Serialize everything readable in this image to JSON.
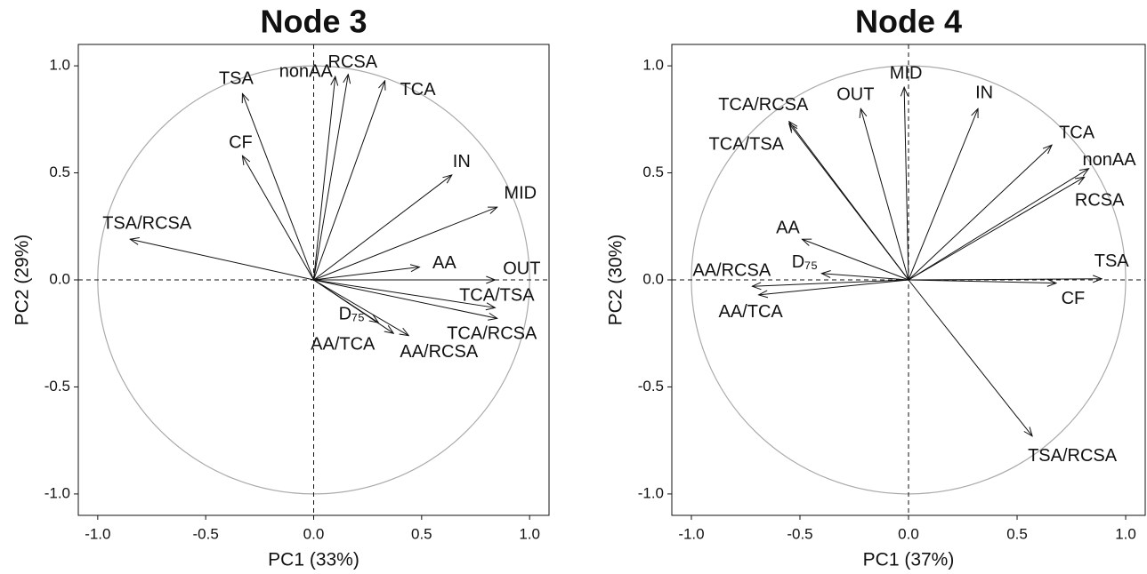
{
  "chart_data": [
    {
      "type": "arrows",
      "title": "Node 3",
      "xlabel": "PC1 (33%)",
      "ylabel": "PC2 (29%)",
      "labels": [
        "TSA",
        "CF",
        "nonAA",
        "RCSA",
        "TCA",
        "IN",
        "MID",
        "TSA/RCSA",
        "AA",
        "OUT",
        "TCA/TSA",
        "TCA/RCSA",
        "D₇₅",
        "AA/TCA",
        "AA/RCSA"
      ],
      "x": [
        -0.33,
        -0.33,
        0.1,
        0.16,
        0.33,
        0.64,
        0.85,
        -0.85,
        0.49,
        0.84,
        0.84,
        0.85,
        0.3,
        0.37,
        0.44
      ],
      "y": [
        0.87,
        0.58,
        0.95,
        0.96,
        0.93,
        0.49,
        0.34,
        0.19,
        0.06,
        0.0,
        -0.13,
        -0.18,
        -0.2,
        -0.25,
        -0.26
      ],
      "xlim": [
        -1.09,
        1.09
      ],
      "ylim": [
        -1.1,
        1.1
      ],
      "xticks": [
        {
          "value": -1,
          "label": "-1.0"
        },
        -0.5,
        {
          "value": 0,
          "label": "0.0"
        },
        0.5,
        {
          "value": 1,
          "label": "1.0"
        }
      ],
      "yticks": [
        {
          "value": -1,
          "label": "-1.0"
        },
        -0.5,
        {
          "value": 0,
          "label": "0.0"
        },
        0.5,
        {
          "value": 1,
          "label": "1.0"
        }
      ]
    },
    {
      "type": "arrows",
      "title": "Node 4",
      "xlabel": "PC1 (37%)",
      "ylabel": "PC2 (30%)",
      "labels": [
        "MID",
        "OUT",
        "IN",
        "TCA/RCSA",
        "TCA/TSA",
        "TCA",
        "nonAA",
        "RCSA",
        "AA",
        "D₇₅",
        "AA/RCSA",
        "AA/TCA",
        "TSA",
        "CF",
        "TSA/RCSA"
      ],
      "x": [
        -0.02,
        -0.22,
        0.32,
        -0.55,
        -0.55,
        0.66,
        0.83,
        0.81,
        -0.49,
        -0.4,
        -0.72,
        -0.69,
        0.89,
        0.68,
        0.57
      ],
      "y": [
        0.9,
        0.8,
        0.8,
        0.74,
        0.73,
        0.63,
        0.52,
        0.48,
        0.19,
        0.03,
        -0.03,
        -0.07,
        0.005,
        -0.015,
        -0.73
      ],
      "xlim": [
        -1.09,
        1.09
      ],
      "ylim": [
        -1.1,
        1.1
      ],
      "xticks": [
        {
          "value": -1,
          "label": "-1.0"
        },
        -0.5,
        {
          "value": 0,
          "label": "0.0"
        },
        0.5,
        {
          "value": 1,
          "label": "1.0"
        }
      ],
      "yticks": [
        {
          "value": -1,
          "label": "-1.0"
        },
        -0.5,
        {
          "value": 0,
          "label": "0.0"
        },
        0.5,
        {
          "value": 1,
          "label": "1.0"
        }
      ]
    }
  ]
}
